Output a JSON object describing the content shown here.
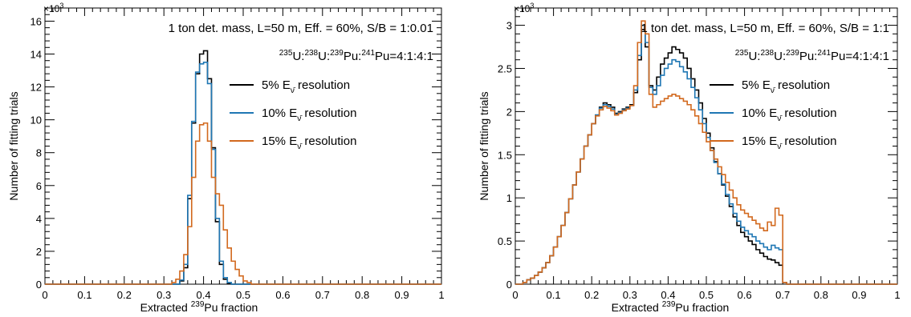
{
  "colors": {
    "res5": "#000000",
    "res10": "#1f77b4",
    "res15": "#d2691e"
  },
  "chart_data": [
    {
      "type": "line",
      "step": true,
      "annotation": "1 ton det. mass, L=50 m, Eff. = 60%, S/B = 1:0.01",
      "isotopes": {
        "a": "235",
        "b": "U:",
        "c": "238",
        "d": "U:",
        "e": "239",
        "f": "Pu:",
        "g": "241",
        "h": "Pu=4:1:4:1"
      },
      "xlabel_pre": "Extracted ",
      "xlabel_sup": "239",
      "xlabel_post": "Pu fraction",
      "ylabel": "Number of fitting trials",
      "y_multiplier": "×10",
      "y_multiplier_exp": "3",
      "xlim": [
        0,
        1
      ],
      "ylim": [
        0,
        16.8
      ],
      "xticks": [
        "0",
        "0.1",
        "0.2",
        "0.3",
        "0.4",
        "0.5",
        "0.6",
        "0.7",
        "0.8",
        "0.9",
        "1"
      ],
      "yticks": [
        "0",
        "2",
        "4",
        "6",
        "8",
        "10",
        "12",
        "14",
        "16"
      ],
      "legend_placement": "top-right",
      "series": [
        {
          "name": "5% E",
          "sub": "ν̄",
          "suffix": " resolution",
          "color_key": "res5",
          "x": [
            0.34,
            0.35,
            0.36,
            0.37,
            0.38,
            0.39,
            0.4,
            0.41,
            0.42,
            0.43,
            0.44,
            0.45,
            0.46,
            0.47
          ],
          "y": [
            0.2,
            1.0,
            5.2,
            9.8,
            12.8,
            14.0,
            14.2,
            12.5,
            8.3,
            3.8,
            1.2,
            0.3,
            0.05,
            0
          ]
        },
        {
          "name": "10% E",
          "sub": "ν̄",
          "suffix": " resolution",
          "color_key": "res10",
          "x": [
            0.34,
            0.35,
            0.36,
            0.37,
            0.38,
            0.39,
            0.4,
            0.41,
            0.42,
            0.43,
            0.44,
            0.45,
            0.46,
            0.47
          ],
          "y": [
            0.25,
            1.2,
            5.4,
            9.9,
            12.9,
            13.4,
            13.5,
            12.2,
            8.2,
            4.0,
            1.4,
            0.4,
            0.1,
            0
          ]
        },
        {
          "name": "15% E",
          "sub": "ν̄",
          "suffix": " resolution",
          "color_key": "res15",
          "x": [
            0.32,
            0.33,
            0.34,
            0.35,
            0.36,
            0.37,
            0.38,
            0.39,
            0.4,
            0.41,
            0.42,
            0.43,
            0.44,
            0.45,
            0.46,
            0.47,
            0.48,
            0.49,
            0.5,
            0.51,
            0.52
          ],
          "y": [
            0.1,
            0.3,
            0.8,
            1.8,
            3.5,
            6.5,
            8.7,
            9.7,
            9.8,
            8.7,
            6.5,
            5.5,
            4.8,
            3.3,
            2.2,
            1.4,
            0.9,
            0.5,
            0.2,
            0.1,
            0
          ]
        }
      ]
    },
    {
      "type": "line",
      "step": true,
      "annotation": "1 ton det. mass, L=50 m, Eff. = 60%, S/B = 1:1",
      "isotopes": {
        "a": "235",
        "b": "U:",
        "c": "238",
        "d": "U:",
        "e": "239",
        "f": "Pu:",
        "g": "241",
        "h": "Pu=4:1:4:1"
      },
      "xlabel_pre": "Extracted ",
      "xlabel_sup": "239",
      "xlabel_post": "Pu fraction",
      "ylabel": "Number of fitting trials",
      "y_multiplier": "×10",
      "y_multiplier_exp": "3",
      "xlim": [
        0,
        1
      ],
      "ylim": [
        0,
        3.2
      ],
      "xticks": [
        "0",
        "0.1",
        "0.2",
        "0.3",
        "0.4",
        "0.5",
        "0.6",
        "0.7",
        "0.8",
        "0.9",
        "1"
      ],
      "yticks": [
        "0",
        "0.5",
        "1",
        "1.5",
        "2",
        "2.5",
        "3"
      ],
      "legend_placement": "top-right",
      "series": [
        {
          "name": "5% E",
          "sub": "ν̄",
          "suffix": " resolution",
          "color_key": "res5",
          "x": [
            0.02,
            0.03,
            0.04,
            0.05,
            0.06,
            0.07,
            0.08,
            0.09,
            0.1,
            0.11,
            0.12,
            0.13,
            0.14,
            0.15,
            0.16,
            0.17,
            0.18,
            0.19,
            0.2,
            0.21,
            0.22,
            0.23,
            0.24,
            0.25,
            0.26,
            0.27,
            0.28,
            0.29,
            0.3,
            0.31,
            0.32,
            0.33,
            0.34,
            0.35,
            0.36,
            0.37,
            0.38,
            0.39,
            0.4,
            0.41,
            0.42,
            0.43,
            0.44,
            0.45,
            0.46,
            0.47,
            0.48,
            0.49,
            0.5,
            0.51,
            0.52,
            0.53,
            0.54,
            0.55,
            0.56,
            0.57,
            0.58,
            0.59,
            0.6,
            0.61,
            0.62,
            0.63,
            0.64,
            0.65,
            0.66,
            0.67,
            0.68,
            0.69,
            0.7,
            0.71
          ],
          "y": [
            0.02,
            0.05,
            0.07,
            0.1,
            0.14,
            0.19,
            0.25,
            0.33,
            0.43,
            0.55,
            0.68,
            0.83,
            0.99,
            1.15,
            1.3,
            1.45,
            1.6,
            1.73,
            1.86,
            1.96,
            2.05,
            2.1,
            2.08,
            2.05,
            1.98,
            2.0,
            2.03,
            2.05,
            2.08,
            2.22,
            2.6,
            2.95,
            2.75,
            2.3,
            2.25,
            2.4,
            2.55,
            2.62,
            2.68,
            2.75,
            2.72,
            2.68,
            2.62,
            2.5,
            2.38,
            2.25,
            2.1,
            1.92,
            1.75,
            1.58,
            1.42,
            1.28,
            1.15,
            1.02,
            0.9,
            0.78,
            0.68,
            0.6,
            0.55,
            0.5,
            0.46,
            0.4,
            0.36,
            0.32,
            0.29,
            0.28,
            0.25,
            0.22,
            0.02,
            0
          ]
        },
        {
          "name": "10% E",
          "sub": "ν̄",
          "suffix": " resolution",
          "color_key": "res10",
          "x": [
            0.02,
            0.03,
            0.04,
            0.05,
            0.06,
            0.07,
            0.08,
            0.09,
            0.1,
            0.11,
            0.12,
            0.13,
            0.14,
            0.15,
            0.16,
            0.17,
            0.18,
            0.19,
            0.2,
            0.21,
            0.22,
            0.23,
            0.24,
            0.25,
            0.26,
            0.27,
            0.28,
            0.29,
            0.3,
            0.31,
            0.32,
            0.33,
            0.34,
            0.35,
            0.36,
            0.37,
            0.38,
            0.39,
            0.4,
            0.41,
            0.42,
            0.43,
            0.44,
            0.45,
            0.46,
            0.47,
            0.48,
            0.49,
            0.5,
            0.51,
            0.52,
            0.53,
            0.54,
            0.55,
            0.56,
            0.57,
            0.58,
            0.59,
            0.6,
            0.61,
            0.62,
            0.63,
            0.64,
            0.65,
            0.66,
            0.67,
            0.68,
            0.69,
            0.7,
            0.71
          ],
          "y": [
            0.02,
            0.05,
            0.07,
            0.1,
            0.14,
            0.19,
            0.25,
            0.33,
            0.43,
            0.55,
            0.68,
            0.83,
            0.99,
            1.15,
            1.3,
            1.45,
            1.6,
            1.73,
            1.86,
            1.96,
            2.04,
            2.08,
            2.06,
            2.03,
            1.97,
            1.99,
            2.02,
            2.04,
            2.07,
            2.25,
            2.65,
            3.0,
            2.8,
            2.28,
            2.2,
            2.3,
            2.42,
            2.5,
            2.55,
            2.6,
            2.58,
            2.52,
            2.46,
            2.38,
            2.28,
            2.16,
            2.02,
            1.86,
            1.7,
            1.55,
            1.41,
            1.28,
            1.16,
            1.04,
            0.93,
            0.82,
            0.73,
            0.66,
            0.62,
            0.58,
            0.55,
            0.5,
            0.47,
            0.43,
            0.4,
            0.45,
            0.42,
            0.4,
            0.02,
            0
          ]
        },
        {
          "name": "15% E",
          "sub": "ν̄",
          "suffix": " resolution",
          "color_key": "res15",
          "x": [
            0.02,
            0.03,
            0.04,
            0.05,
            0.06,
            0.07,
            0.08,
            0.09,
            0.1,
            0.11,
            0.12,
            0.13,
            0.14,
            0.15,
            0.16,
            0.17,
            0.18,
            0.19,
            0.2,
            0.21,
            0.22,
            0.23,
            0.24,
            0.25,
            0.26,
            0.27,
            0.28,
            0.29,
            0.3,
            0.31,
            0.32,
            0.33,
            0.34,
            0.35,
            0.36,
            0.37,
            0.38,
            0.39,
            0.4,
            0.41,
            0.42,
            0.43,
            0.44,
            0.45,
            0.46,
            0.47,
            0.48,
            0.49,
            0.5,
            0.51,
            0.52,
            0.53,
            0.54,
            0.55,
            0.56,
            0.57,
            0.58,
            0.59,
            0.6,
            0.61,
            0.62,
            0.63,
            0.64,
            0.65,
            0.66,
            0.67,
            0.68,
            0.69,
            0.7,
            0.71
          ],
          "y": [
            0.02,
            0.05,
            0.07,
            0.1,
            0.14,
            0.19,
            0.25,
            0.33,
            0.43,
            0.55,
            0.68,
            0.83,
            0.99,
            1.15,
            1.3,
            1.45,
            1.6,
            1.73,
            1.86,
            1.95,
            2.02,
            2.06,
            2.04,
            2.01,
            1.96,
            1.98,
            2.01,
            2.03,
            2.07,
            2.3,
            2.8,
            3.05,
            2.9,
            2.2,
            2.05,
            2.08,
            2.12,
            2.15,
            2.18,
            2.2,
            2.18,
            2.15,
            2.12,
            2.08,
            2.02,
            1.95,
            1.86,
            1.76,
            1.65,
            1.55,
            1.45,
            1.36,
            1.27,
            1.18,
            1.09,
            1.0,
            0.92,
            0.86,
            0.82,
            0.78,
            0.74,
            0.7,
            0.65,
            0.62,
            0.72,
            0.68,
            0.88,
            0.8,
            0.02,
            0
          ]
        }
      ]
    }
  ]
}
